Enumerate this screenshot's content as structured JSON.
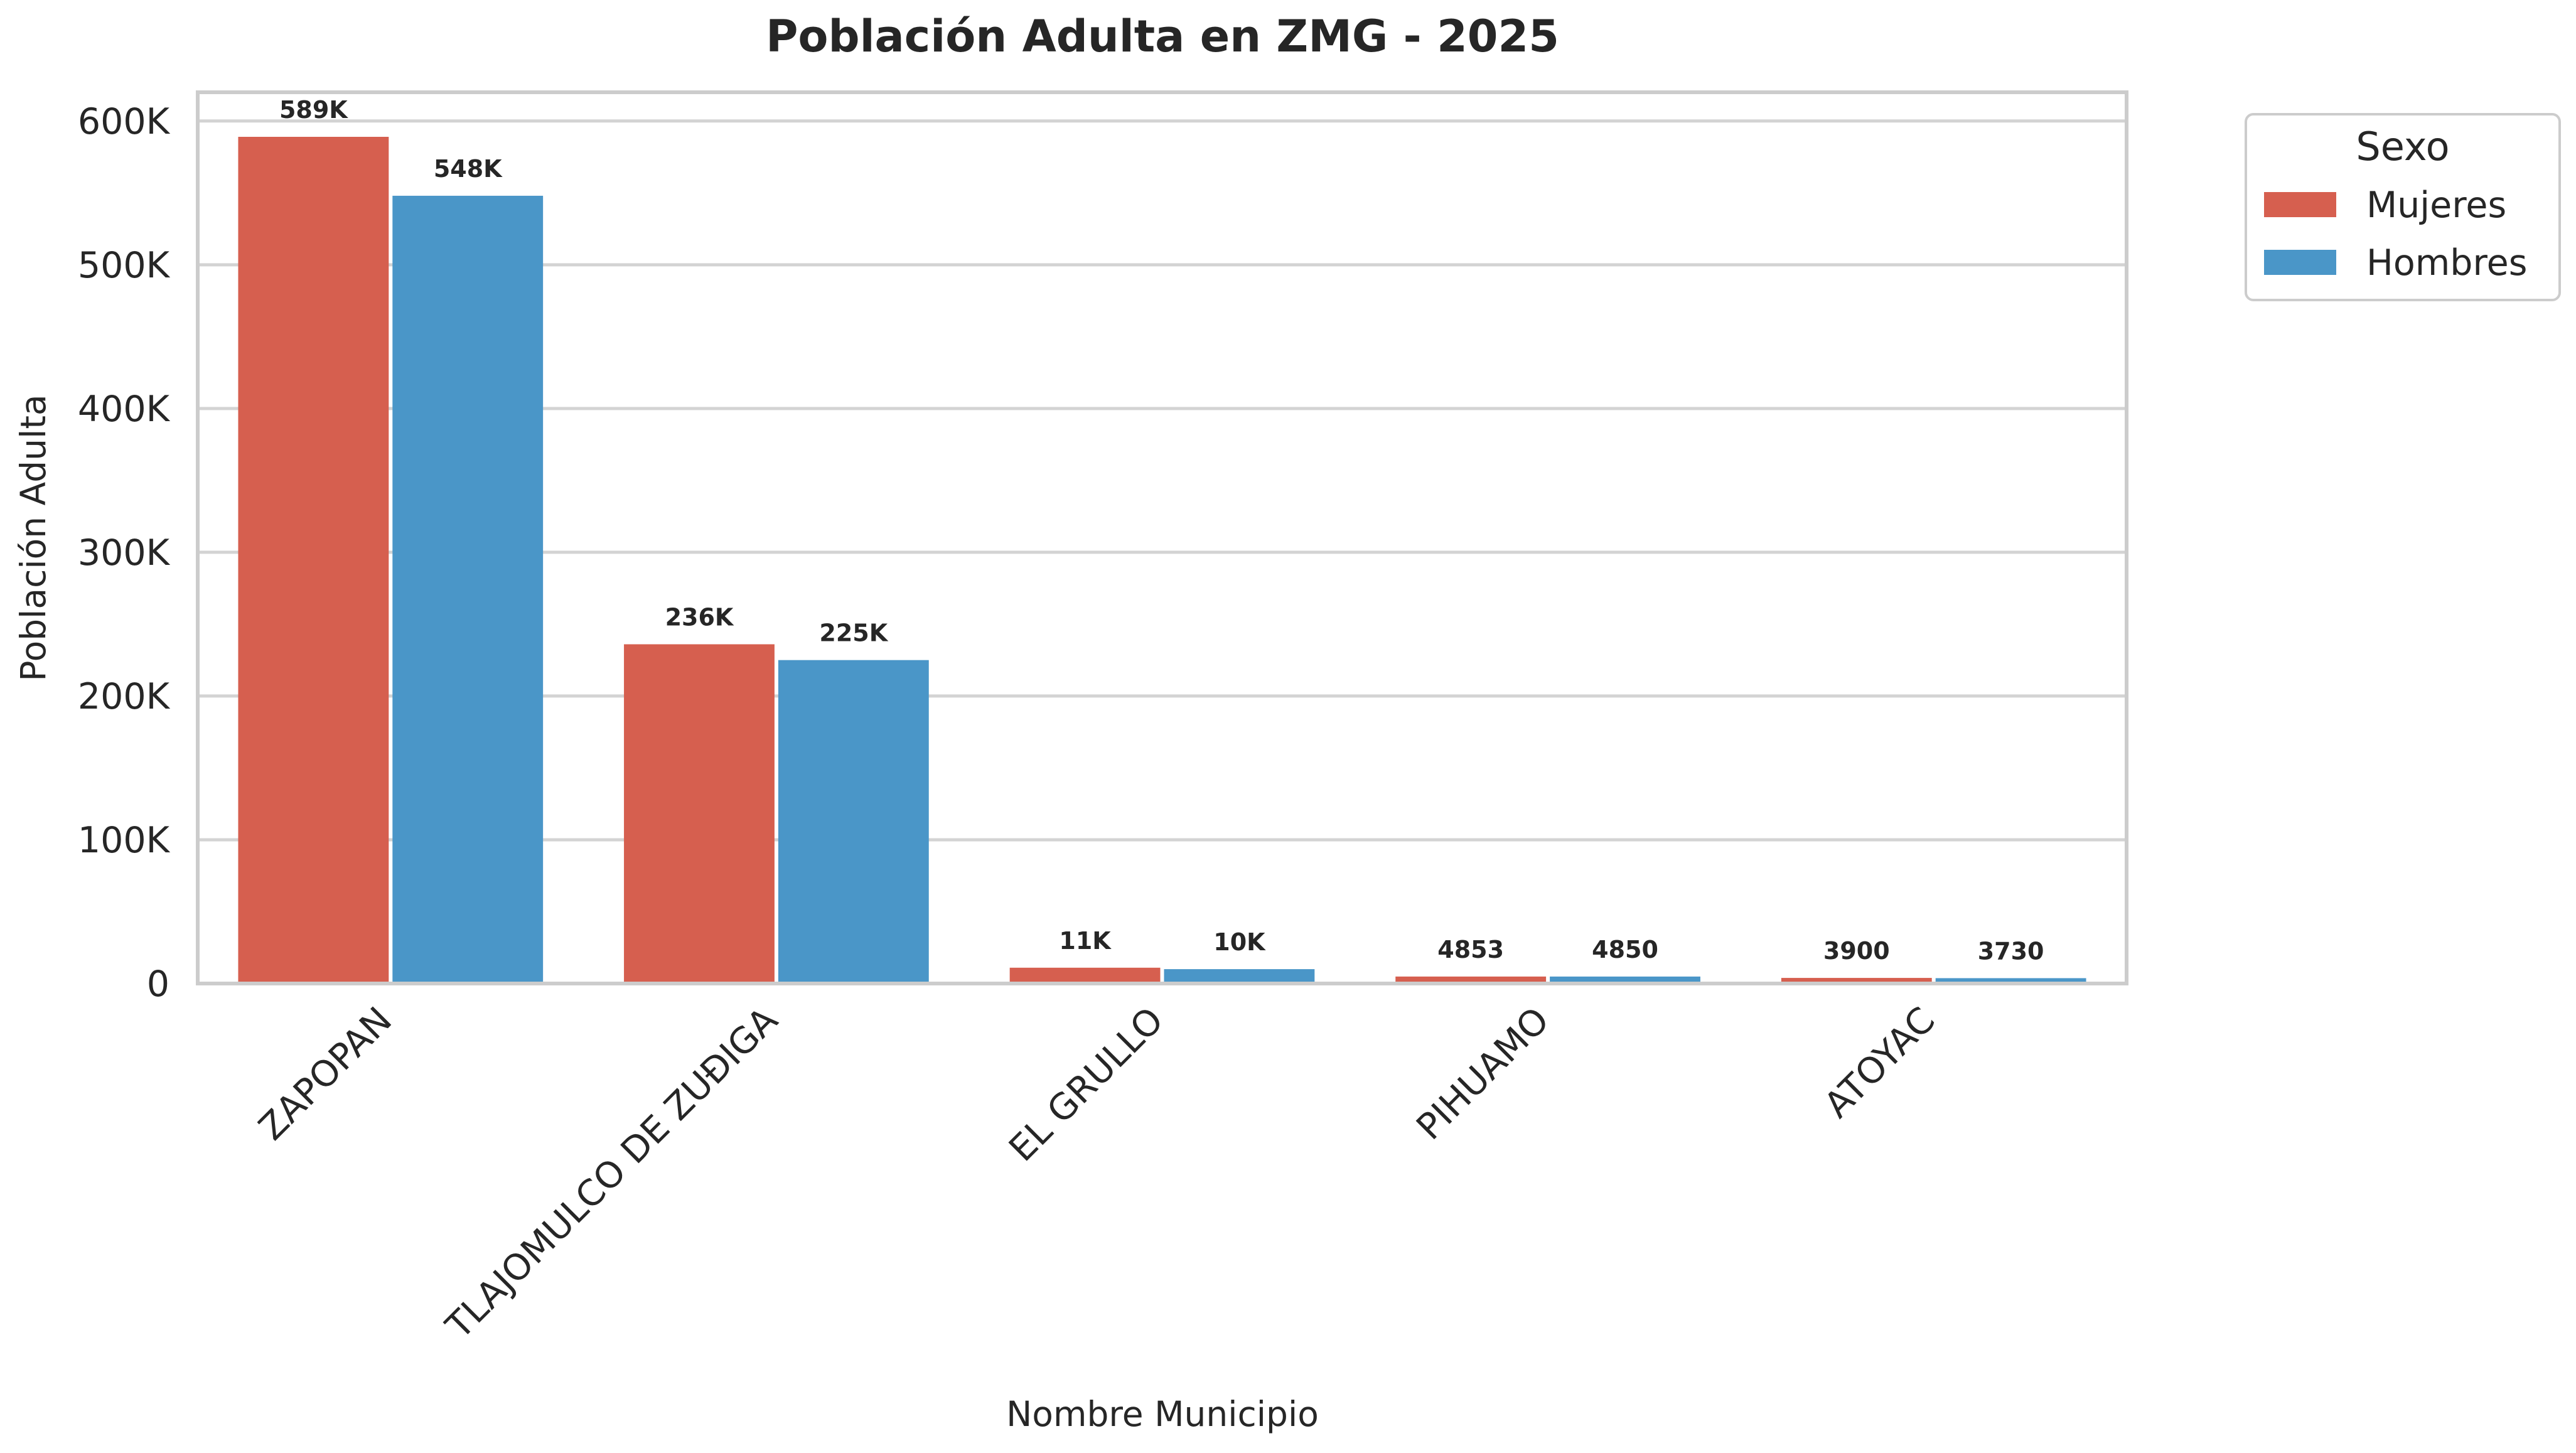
{
  "chart_data": {
    "type": "bar",
    "title": "Población Adulta en ZMG - 2025",
    "xlabel": "Nombre Municipio",
    "ylabel": "Población Adulta",
    "categories": [
      "ZAPOPAN",
      "TLAJOMULCO DE ZUÐIGA",
      "EL GRULLO",
      "PIHUAMO",
      "ATOYAC"
    ],
    "series": [
      {
        "name": "Mujeres",
        "color": "#d65f4f",
        "values": [
          589000,
          236000,
          11000,
          4853,
          3900
        ],
        "labels": [
          "589K",
          "236K",
          "11K",
          "4853",
          "3900"
        ]
      },
      {
        "name": "Hombres",
        "color": "#4a96c8",
        "values": [
          548000,
          225000,
          10000,
          4850,
          3730
        ],
        "labels": [
          "548K",
          "225K",
          "10K",
          "4850",
          "3730"
        ]
      }
    ],
    "ylim": [
      0,
      620000
    ],
    "yticks": [
      0,
      100000,
      200000,
      300000,
      400000,
      500000,
      600000
    ],
    "ytick_labels": [
      "0",
      "100K",
      "200K",
      "300K",
      "400K",
      "500K",
      "600K"
    ],
    "grid": true,
    "legend": {
      "title": "Sexo",
      "position": "outside-top-right"
    }
  }
}
